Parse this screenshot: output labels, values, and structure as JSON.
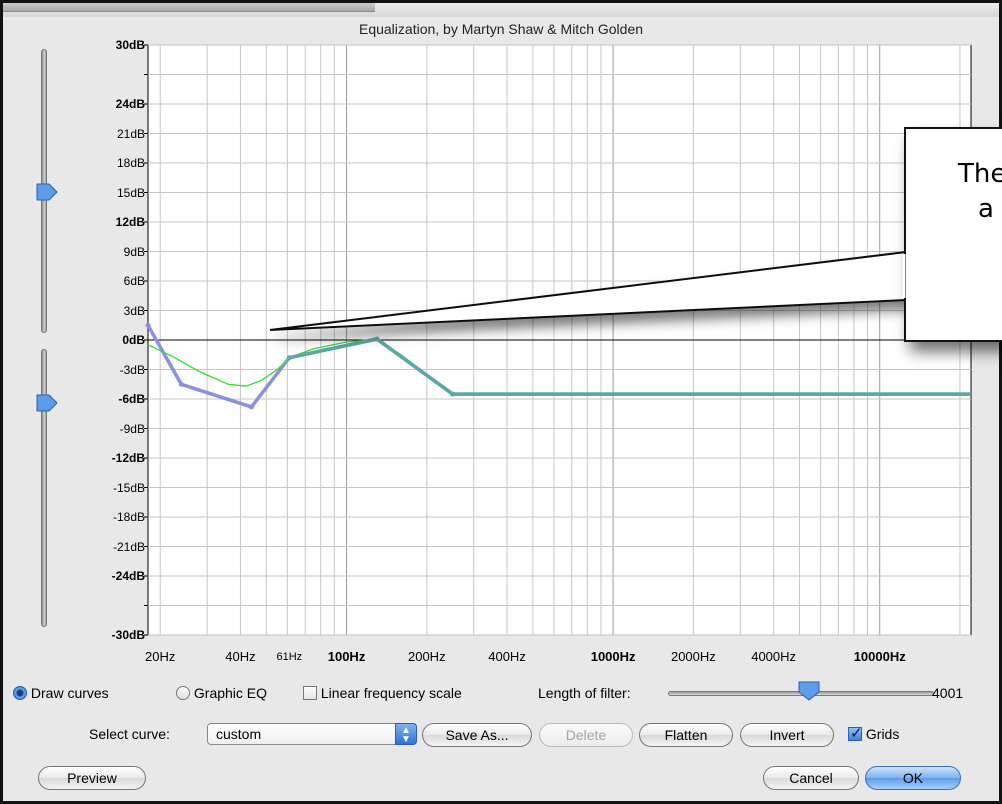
{
  "dialog": {
    "title": "Equalization, by Martyn Shaw & Mitch Golden"
  },
  "callout": {
    "line1": "The",
    "line2": "a"
  },
  "chart_data": {
    "type": "line",
    "title": "",
    "xlabel": "",
    "ylabel": "",
    "x_scale": "log",
    "xlim": [
      18,
      22000
    ],
    "ylim": [
      -30,
      30
    ],
    "grid": true,
    "y_tick_labels": [
      {
        "label": "30dB",
        "value": 30,
        "bold": true
      },
      {
        "label": "24dB",
        "value": 24,
        "bold": true
      },
      {
        "label": "21dB",
        "value": 21,
        "bold": false
      },
      {
        "label": "18dB",
        "value": 18,
        "bold": false
      },
      {
        "label": "15dB",
        "value": 15,
        "bold": false
      },
      {
        "label": "12dB",
        "value": 12,
        "bold": true
      },
      {
        "label": "9dB",
        "value": 9,
        "bold": false
      },
      {
        "label": "6dB",
        "value": 6,
        "bold": false
      },
      {
        "label": "3dB",
        "value": 3,
        "bold": false
      },
      {
        "label": "0dB",
        "value": 0,
        "bold": true
      },
      {
        "label": "-3dB",
        "value": -3,
        "bold": false
      },
      {
        "label": "-6dB",
        "value": -6,
        "bold": true
      },
      {
        "label": "-9dB",
        "value": -9,
        "bold": false
      },
      {
        "label": "-12dB",
        "value": -12,
        "bold": true
      },
      {
        "label": "-15dB",
        "value": -15,
        "bold": false
      },
      {
        "label": "-18dB",
        "value": -18,
        "bold": false
      },
      {
        "label": "-21dB",
        "value": -21,
        "bold": false
      },
      {
        "label": "-24dB",
        "value": -24,
        "bold": true
      },
      {
        "label": "-30dB",
        "value": -30,
        "bold": true
      }
    ],
    "x_tick_labels": [
      {
        "label": "20Hz",
        "value": 20,
        "bold": false,
        "small": false
      },
      {
        "label": "40Hz",
        "value": 40,
        "bold": false,
        "small": false
      },
      {
        "label": "61Hz",
        "value": 61,
        "bold": false,
        "small": true
      },
      {
        "label": "100Hz",
        "value": 100,
        "bold": true,
        "small": false
      },
      {
        "label": "200Hz",
        "value": 200,
        "bold": false,
        "small": false
      },
      {
        "label": "400Hz",
        "value": 400,
        "bold": false,
        "small": false
      },
      {
        "label": "1000Hz",
        "value": 1000,
        "bold": true,
        "small": false
      },
      {
        "label": "2000Hz",
        "value": 2000,
        "bold": false,
        "small": false
      },
      {
        "label": "4000Hz",
        "value": 4000,
        "bold": false,
        "small": false
      },
      {
        "label": "10000Hz",
        "value": 10000,
        "bold": true,
        "small": false
      }
    ],
    "series": [
      {
        "role": "drawn-curve",
        "color": "#8a8fe0",
        "points": [
          [
            18,
            1.5
          ],
          [
            24,
            -4.5
          ],
          [
            44,
            -6.8
          ],
          [
            61,
            -1.8
          ],
          [
            130,
            0.1
          ],
          [
            250,
            -5.5
          ],
          [
            22000,
            -5.5
          ]
        ]
      },
      {
        "role": "actual-response",
        "color": "#33dd33",
        "points": [
          [
            18,
            -0.5
          ],
          [
            22,
            -1.6
          ],
          [
            28,
            -3.2
          ],
          [
            36,
            -4.5
          ],
          [
            42,
            -4.7
          ],
          [
            48,
            -4.1
          ],
          [
            55,
            -3.0
          ],
          [
            61,
            -1.8
          ],
          [
            75,
            -0.9
          ],
          [
            100,
            -0.2
          ],
          [
            130,
            0.1
          ],
          [
            160,
            -1.5
          ],
          [
            200,
            -3.5
          ],
          [
            250,
            -5.5
          ],
          [
            22000,
            -5.5
          ]
        ]
      }
    ]
  },
  "controls": {
    "draw_curves_label": "Draw curves",
    "graphic_eq_label": "Graphic EQ",
    "linear_scale_label": "Linear frequency scale",
    "length_label": "Length of filter:",
    "length_value": "4001",
    "length_fraction": 0.53,
    "select_curve_label": "Select curve:",
    "curve_value": "custom",
    "save_as_label": "Save As...",
    "delete_label": "Delete",
    "flatten_label": "Flatten",
    "invert_label": "Invert",
    "grids_label": "Grids",
    "preview_label": "Preview",
    "cancel_label": "Cancel",
    "ok_label": "OK",
    "draw_curves_selected": true,
    "linear_scale_checked": false,
    "grids_checked": true
  },
  "sliders": {
    "upper_level_db": 15,
    "lower_level_db": -6
  },
  "icons": {
    "radio": "radio-button",
    "checkbox": "checkbox",
    "popup": "popup-arrows-icon"
  },
  "colors": {
    "drawn_curve": "#8a8fe0",
    "response_curve": "#33dd33",
    "accent": "#3c7dd8"
  }
}
